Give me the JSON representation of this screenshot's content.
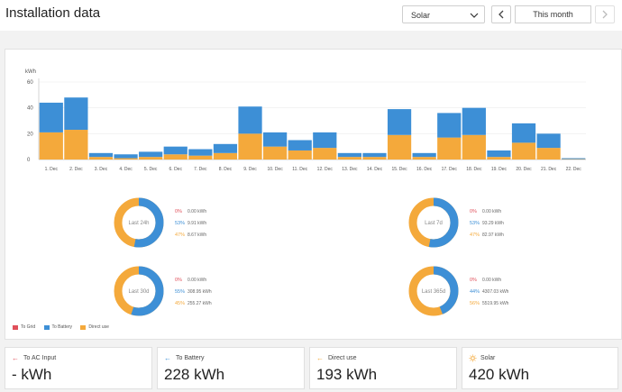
{
  "header": {
    "title": "Installation data",
    "source_select": "Solar",
    "period_label": "This month"
  },
  "colors": {
    "to_grid": "#e0505b",
    "to_battery": "#3d8fd6",
    "direct_use": "#f4a93b"
  },
  "chart_data": {
    "type": "bar",
    "stacked": true,
    "ylabel": "kWh",
    "ylim": [
      0,
      60
    ],
    "yticks": [
      0,
      20,
      40,
      60
    ],
    "categories": [
      "1. Dec",
      "2. Dec",
      "3. Dec",
      "4. Dec",
      "5. Dec",
      "6. Dec",
      "7. Dec",
      "8. Dec",
      "9. Dec",
      "10. Dec",
      "11. Dec",
      "12. Dec",
      "13. Dec",
      "14. Dec",
      "15. Dec",
      "16. Dec",
      "17. Dec",
      "18. Dec",
      "19. Dec",
      "20. Dec",
      "21. Dec",
      "22. Dec"
    ],
    "series": [
      {
        "name": "Direct use",
        "values": [
          21,
          23,
          2,
          1,
          2,
          4,
          3,
          5,
          20,
          10,
          7,
          9,
          2,
          2,
          19,
          2,
          17,
          19,
          2,
          13,
          9,
          0.3
        ]
      },
      {
        "name": "To Battery",
        "values": [
          23,
          25,
          3,
          3,
          4,
          6,
          5,
          7,
          21,
          11,
          8,
          12,
          3,
          3,
          20,
          3,
          19,
          21,
          5,
          15,
          11,
          0.7
        ]
      },
      {
        "name": "To Grid",
        "values": [
          0,
          0,
          0,
          0,
          0,
          0,
          0,
          0,
          0,
          0,
          0,
          0,
          0,
          0,
          0,
          0,
          0,
          0,
          0,
          0,
          0,
          0
        ]
      }
    ],
    "grid": "horizontal"
  },
  "donuts": [
    {
      "label": "Last 24h",
      "grid_pct": "0%",
      "grid_val": "0.00 kWh",
      "battery_pct": "53%",
      "battery_val": "9.91 kWh",
      "direct_pct": "47%",
      "direct_val": "8.67 kWh",
      "battery_frac": 0.53
    },
    {
      "label": "Last 7d",
      "grid_pct": "0%",
      "grid_val": "0.00 kWh",
      "battery_pct": "53%",
      "battery_val": "93.29 kWh",
      "direct_pct": "47%",
      "direct_val": "82.97 kWh",
      "battery_frac": 0.53
    },
    {
      "label": "Last 30d",
      "grid_pct": "0%",
      "grid_val": "0.00 kWh",
      "battery_pct": "55%",
      "battery_val": "308.95 kWh",
      "direct_pct": "45%",
      "direct_val": "255.27 kWh",
      "battery_frac": 0.55
    },
    {
      "label": "Last 365d",
      "grid_pct": "0%",
      "grid_val": "0.00 kWh",
      "battery_pct": "44%",
      "battery_val": "4307.03 kWh",
      "direct_pct": "56%",
      "direct_val": "5519.95 kWh",
      "battery_frac": 0.44
    }
  ],
  "legend": [
    "To Grid",
    "To Battery",
    "Direct use"
  ],
  "cards": [
    {
      "label": "To AC Input",
      "value": "- kWh",
      "icon": "arrow-left-icon"
    },
    {
      "label": "To Battery",
      "value": "228 kWh",
      "icon": "arrow-left-icon"
    },
    {
      "label": "Direct use",
      "value": "193 kWh",
      "icon": "arrow-left-icon"
    },
    {
      "label": "Solar",
      "value": "420 kWh",
      "icon": "sun-icon"
    }
  ]
}
